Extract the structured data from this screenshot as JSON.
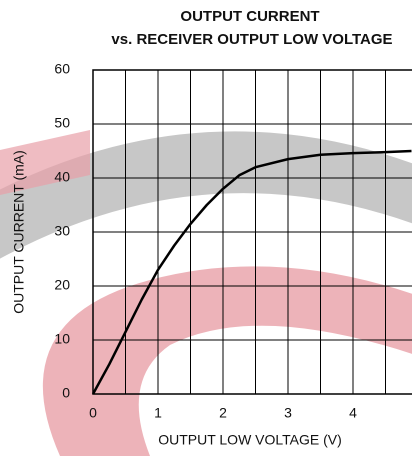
{
  "chart_data": {
    "type": "line",
    "title": "OUTPUT CURRENT",
    "subtitle": "vs. RECEIVER OUTPUT LOW VOLTAGE",
    "x_label": "OUTPUT LOW VOLTAGE (V)",
    "y_label": "OUTPUT CURRENT (mA)",
    "x": [
      0,
      0.25,
      0.5,
      0.75,
      1,
      1.25,
      1.5,
      1.75,
      2,
      2.25,
      2.5,
      3,
      3.5,
      4,
      4.5,
      4.9
    ],
    "series": [
      {
        "color": "#000000",
        "values": [
          0,
          5.5,
          11.5,
          17.5,
          23,
          27.5,
          31.5,
          35,
          38,
          40.5,
          42,
          43.5,
          44.3,
          44.6,
          44.8,
          45
        ]
      }
    ],
    "xlim": [
      0,
      5
    ],
    "ylim": [
      0,
      60
    ],
    "xticks": [
      0,
      1,
      2,
      3,
      4
    ],
    "xgrid_minor": [
      0.5,
      1.5,
      2.5,
      3.5,
      4.5
    ],
    "yticks": [
      0,
      10,
      20,
      30,
      40,
      50,
      60
    ],
    "grid": true
  }
}
